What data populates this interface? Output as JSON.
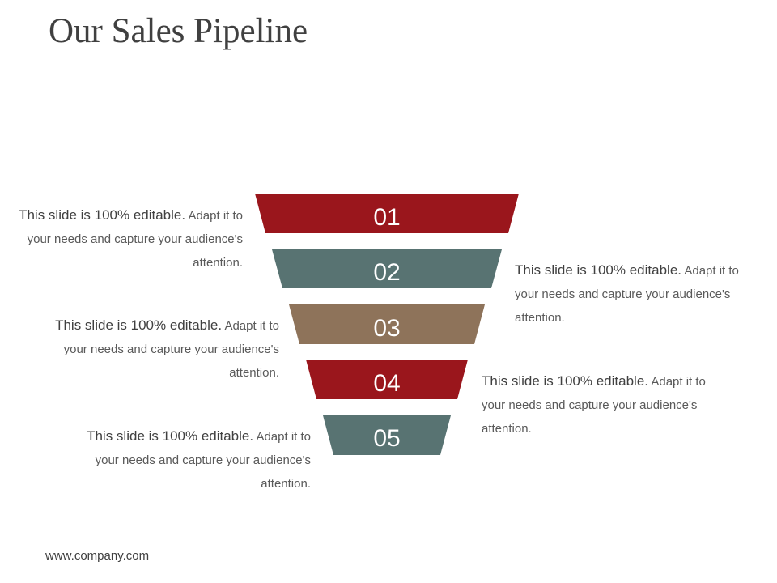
{
  "title": "Our Sales Pipeline",
  "stages": [
    {
      "number": "01",
      "color": "#9a161c"
    },
    {
      "number": "02",
      "color": "#587372"
    },
    {
      "number": "03",
      "color": "#8e735a"
    },
    {
      "number": "04",
      "color": "#9a161c"
    },
    {
      "number": "05",
      "color": "#587372"
    }
  ],
  "captions": [
    {
      "lead": "This slide is 100% editable.",
      "body": " Adapt it to your needs and capture your audience's attention."
    },
    {
      "lead": "This slide is 100% editable.",
      "body": " Adapt it to your needs and capture your audience's attention."
    },
    {
      "lead": "This slide is 100% editable.",
      "body": " Adapt it to your needs and capture your audience's attention."
    },
    {
      "lead": "This slide is 100% editable.",
      "body": " Adapt it to your needs and capture your audience's attention."
    },
    {
      "lead": "This slide is 100% editable.",
      "body": " Adapt it to your needs and capture your audience's attention."
    }
  ],
  "footer": "www.company.com"
}
